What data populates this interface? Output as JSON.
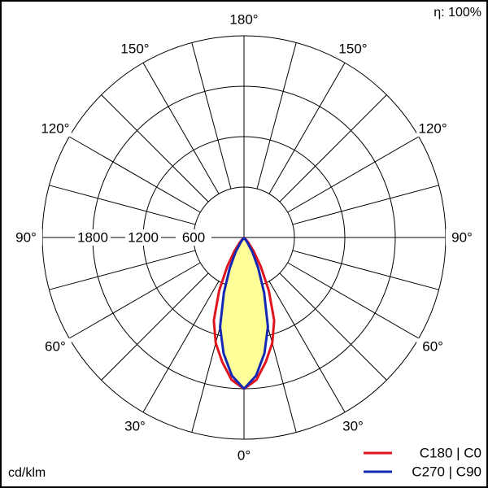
{
  "chart_data": {
    "type": "polar",
    "efficiency_label": "η: 100%",
    "unit": "cd/klm",
    "rlim": [
      0,
      2400
    ],
    "rticks": [
      600,
      1200,
      1800
    ],
    "angle_grid": [
      0,
      15,
      30,
      45,
      60,
      75,
      90,
      105,
      120,
      135,
      150,
      165,
      180
    ],
    "angle_ticks": [
      {
        "value": 0,
        "label": "0°"
      },
      {
        "value": 30,
        "label": "30°"
      },
      {
        "value": 60,
        "label": "60°"
      },
      {
        "value": 90,
        "label": "90°"
      },
      {
        "value": 120,
        "label": "120°"
      },
      {
        "value": 150,
        "label": "150°"
      },
      {
        "value": 180,
        "label": "180°"
      }
    ],
    "angles": [
      0,
      5,
      10,
      15,
      20,
      25,
      30,
      35,
      40,
      45,
      50,
      55,
      60,
      65,
      70,
      75,
      80,
      85,
      90
    ],
    "series": [
      {
        "name": "C180 | C0",
        "color": "#e0141e",
        "values": [
          1800,
          1700,
          1500,
          1300,
          1050,
          700,
          400,
          200,
          80,
          20,
          0,
          0,
          0,
          0,
          0,
          0,
          0,
          0,
          0
        ]
      },
      {
        "name": "C270 | C90",
        "color": "#1428b4",
        "fill": "#ffff99",
        "values": [
          1800,
          1650,
          1400,
          1100,
          700,
          400,
          200,
          60,
          0,
          0,
          0,
          0,
          0,
          0,
          0,
          0,
          0,
          0,
          0
        ]
      }
    ]
  }
}
